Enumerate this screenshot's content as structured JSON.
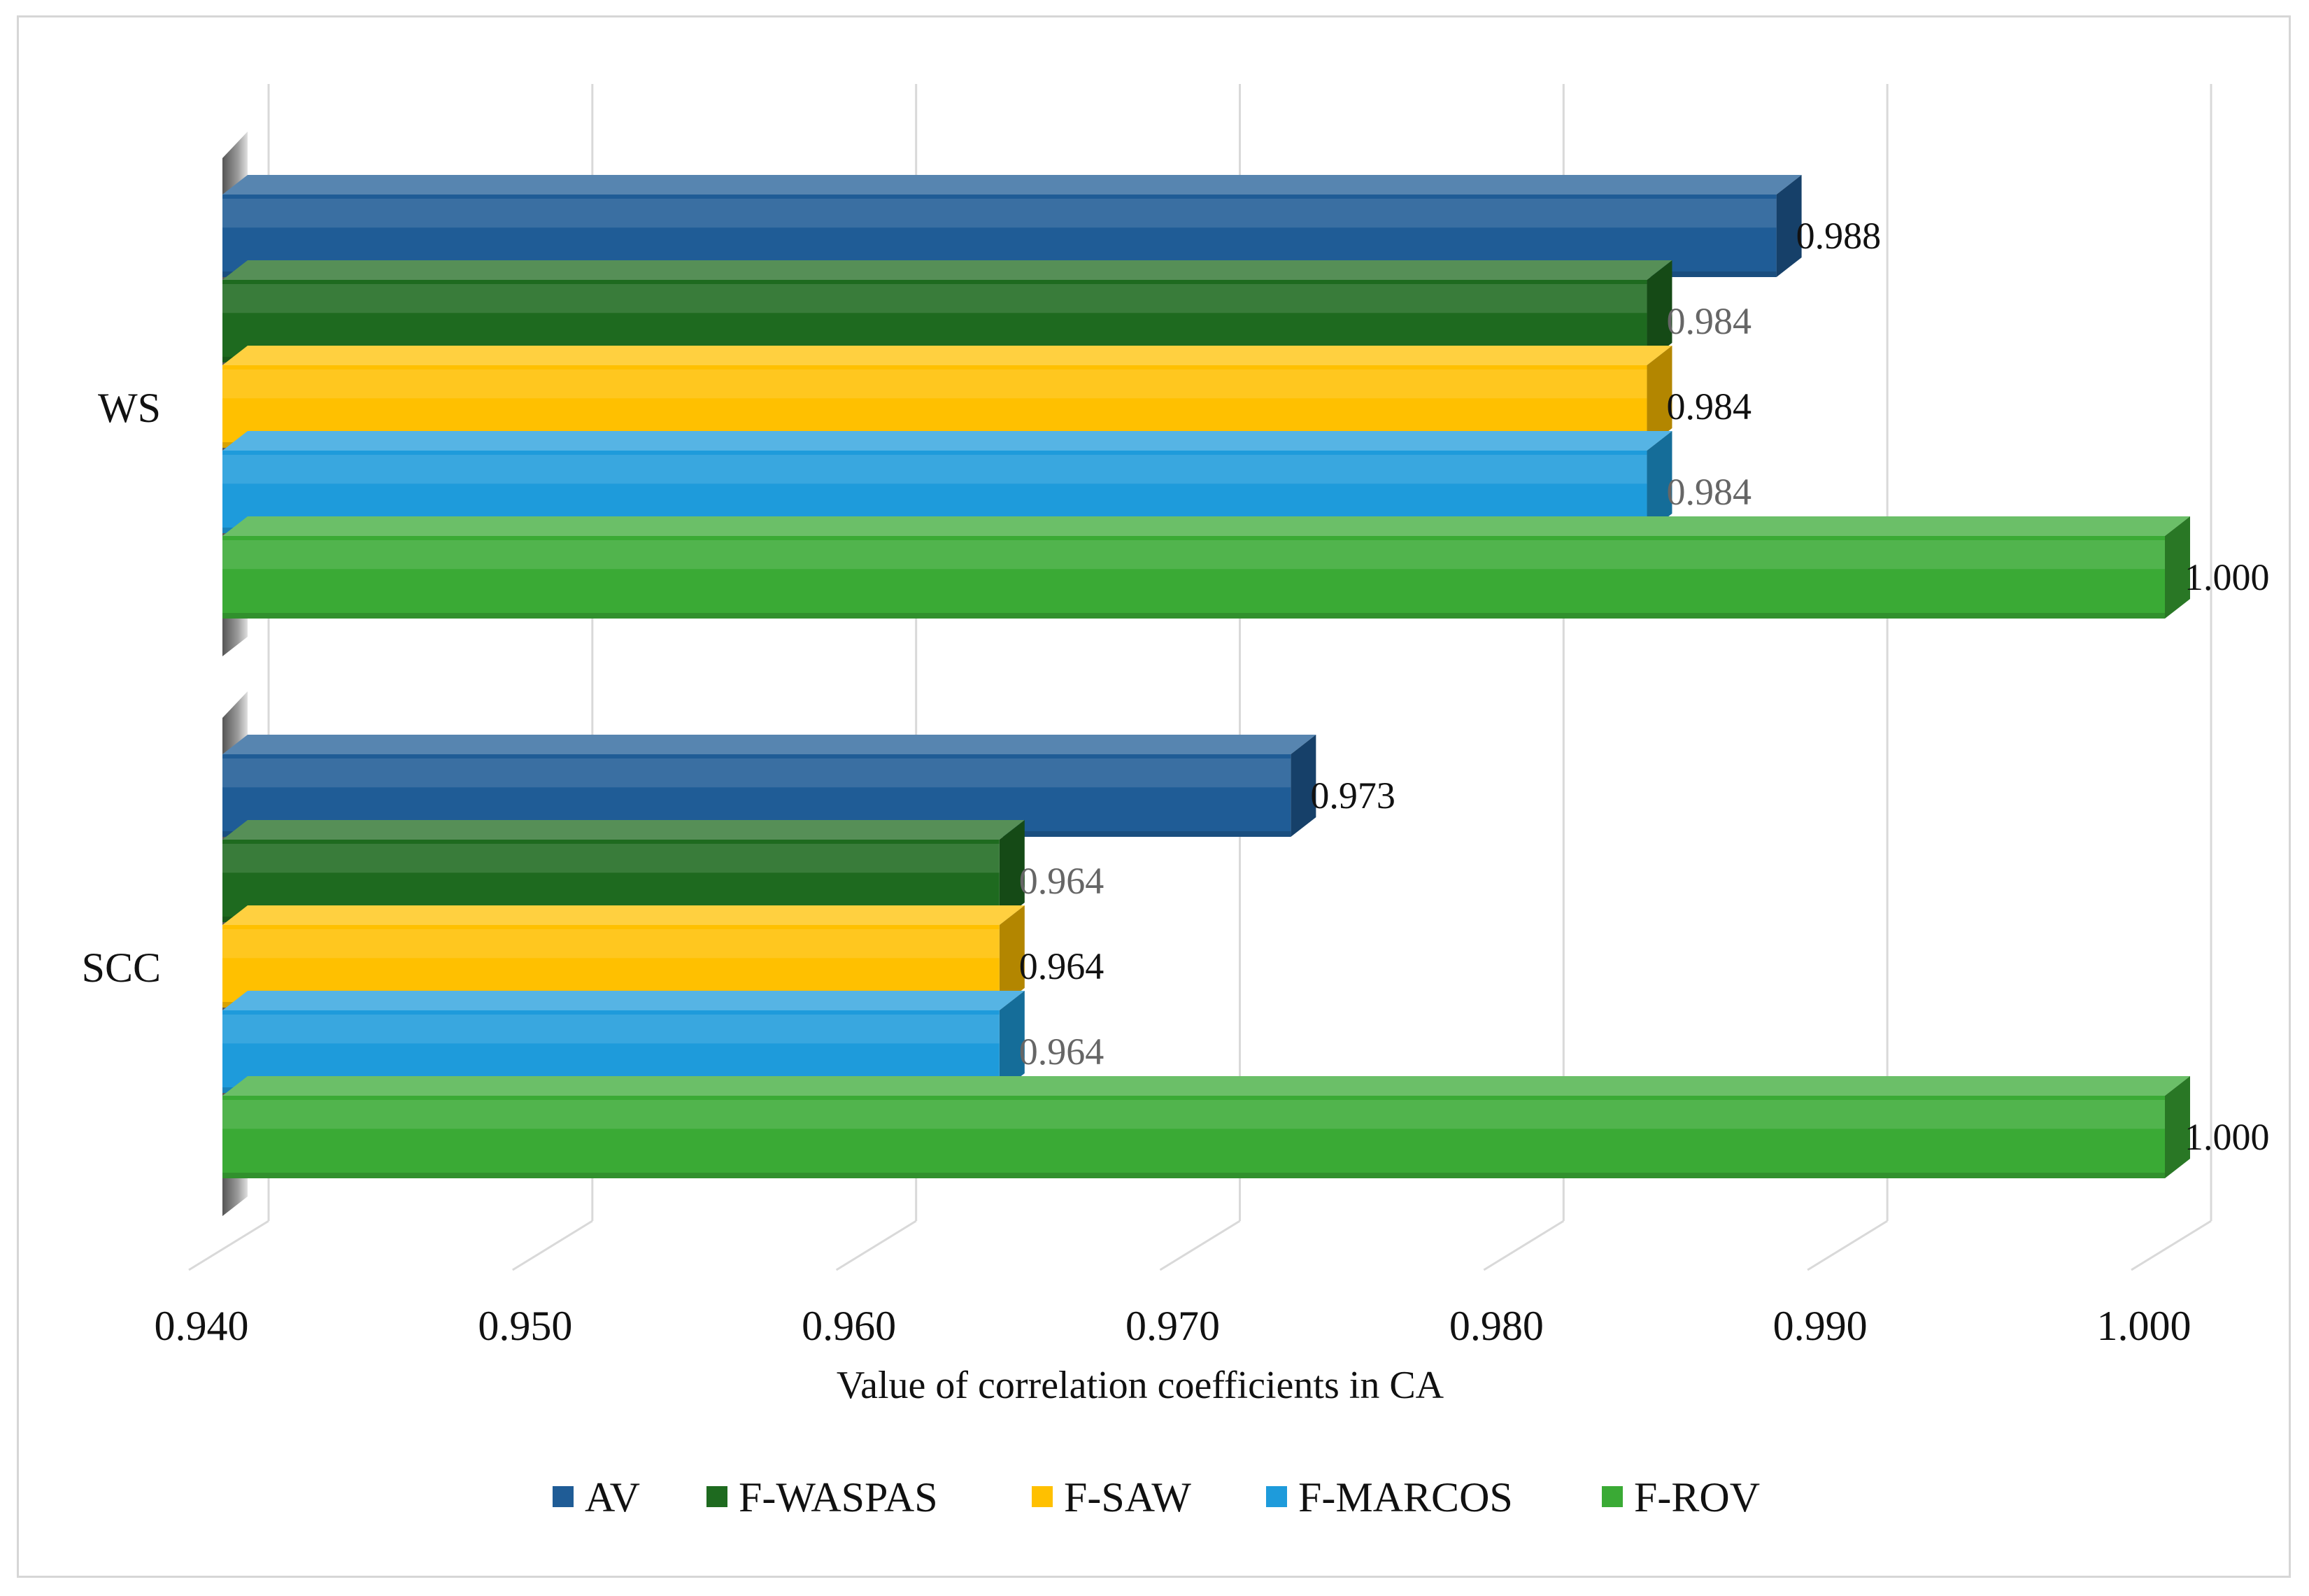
{
  "chart_data": {
    "type": "bar",
    "orientation": "horizontal",
    "style": "3d-clustered",
    "title": "",
    "xlabel": "Value of correlation coefficients in CA",
    "ylabel": "",
    "xlim": [
      0.94,
      1.0
    ],
    "x_ticks": [
      "0.940",
      "0.950",
      "0.960",
      "0.970",
      "0.980",
      "0.990",
      "1.000"
    ],
    "categories": [
      "WS",
      "SCC"
    ],
    "series": [
      {
        "name": "AV",
        "color": "#1f5c96",
        "values": [
          0.988,
          0.973
        ],
        "labels": [
          "0.988",
          "0.973"
        ],
        "label_color": "#111111"
      },
      {
        "name": "F-WASPAS",
        "color": "#1e6a1f",
        "values": [
          0.984,
          0.964
        ],
        "labels": [
          "0.984",
          "0.964"
        ],
        "label_color": "#666666"
      },
      {
        "name": "F-SAW",
        "color": "#ffc000",
        "values": [
          0.984,
          0.964
        ],
        "labels": [
          "0.984",
          "0.964"
        ],
        "label_color": "#111111"
      },
      {
        "name": "F-MARCOS",
        "color": "#1e9bdb",
        "values": [
          0.984,
          0.964
        ],
        "labels": [
          "0.984",
          "0.964"
        ],
        "label_color": "#666666"
      },
      {
        "name": "F-ROV",
        "color": "#3aaa35",
        "values": [
          1.0,
          1.0
        ],
        "labels": [
          "1.000",
          "1.000"
        ],
        "label_color": "#111111"
      }
    ],
    "legend_position": "bottom",
    "grid": true
  }
}
